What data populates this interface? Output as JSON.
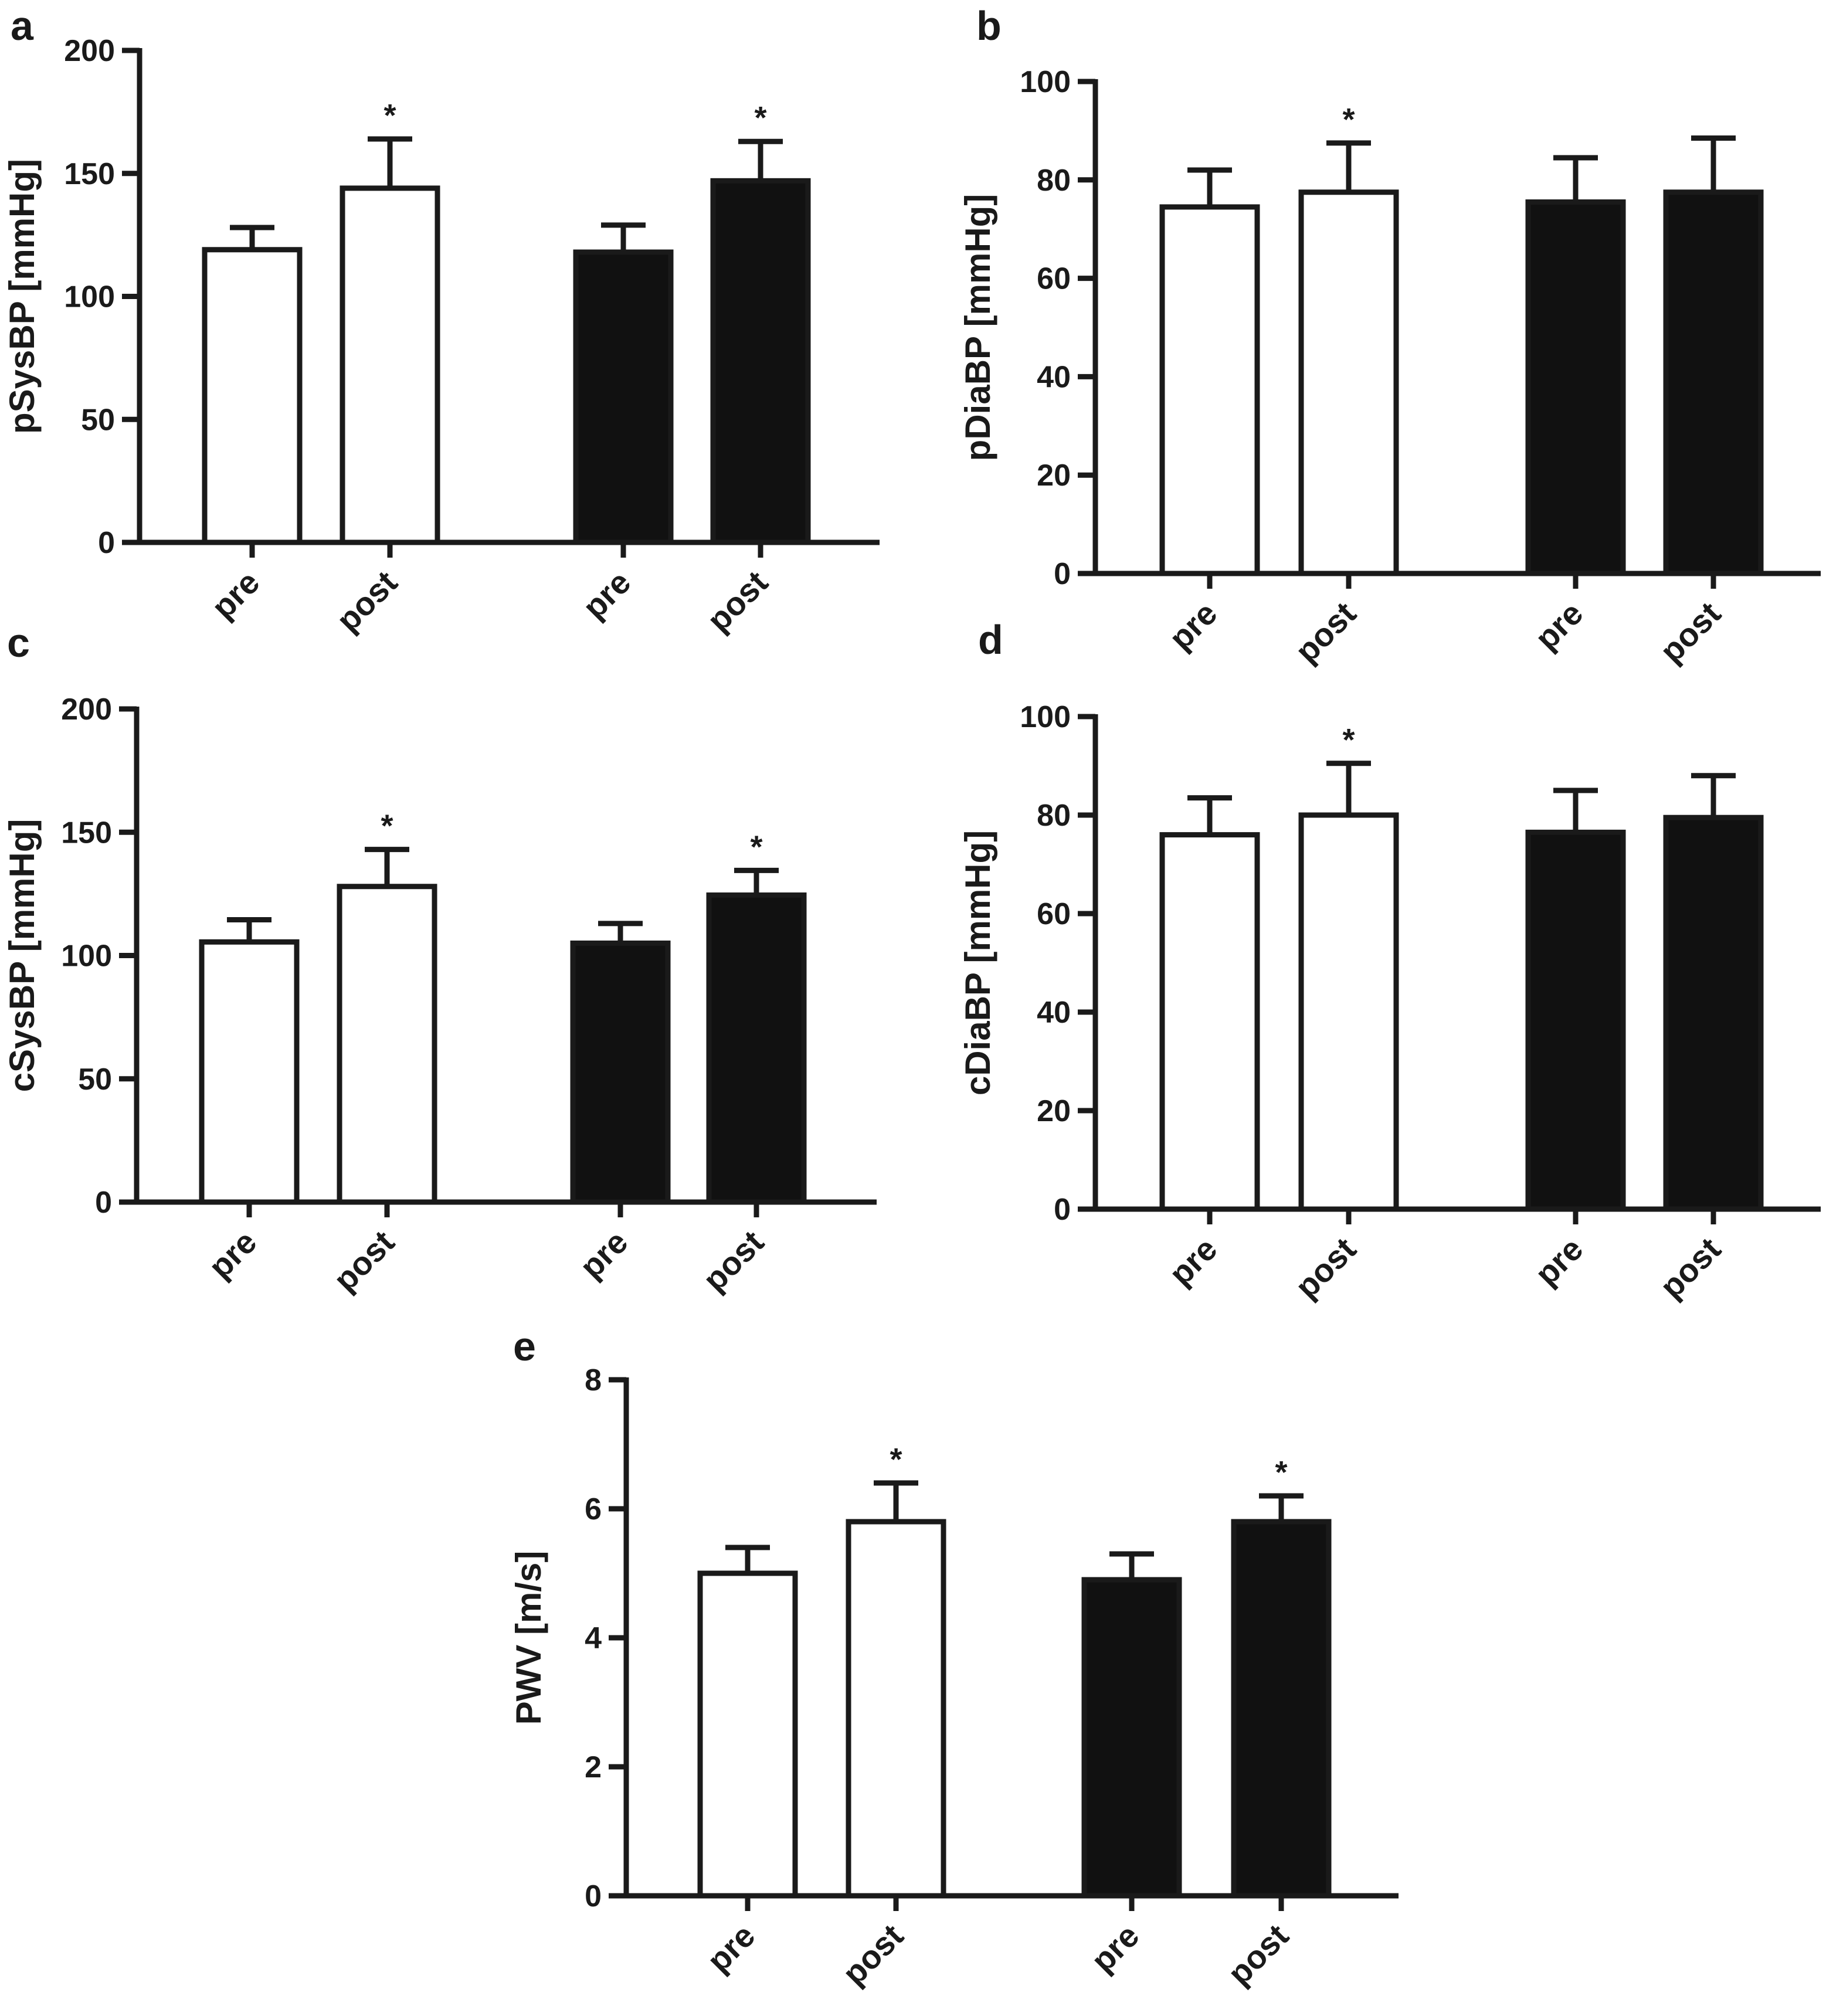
{
  "colors": {
    "axis": "#1a1a1a",
    "open_bar": "#ffffff",
    "filled_bar": "#111111"
  },
  "chart_data": [
    {
      "panel": "a",
      "type": "bar",
      "ylabel": "pSysBP [mmHg]",
      "ylim": [
        0,
        200
      ],
      "yticks": [
        "0",
        "50",
        "100",
        "150",
        "200"
      ],
      "categories": [
        "pre",
        "post",
        "pre",
        "post"
      ],
      "values": [
        119,
        144,
        118,
        147
      ],
      "errors": [
        9,
        20,
        11,
        16
      ],
      "fills": [
        "open",
        "open",
        "filled",
        "filled"
      ],
      "significance": [
        "",
        "*",
        "",
        "*"
      ]
    },
    {
      "panel": "b",
      "type": "bar",
      "ylabel": "pDiaBP [mmHg]",
      "ylim": [
        0,
        100
      ],
      "yticks": [
        "0",
        "20",
        "40",
        "60",
        "80",
        "100"
      ],
      "categories": [
        "pre",
        "post",
        "pre",
        "post"
      ],
      "values": [
        74.5,
        77.5,
        75.5,
        77.5
      ],
      "errors": [
        7.5,
        10,
        9,
        11
      ],
      "fills": [
        "open",
        "open",
        "filled",
        "filled"
      ],
      "significance": [
        "",
        "*",
        "",
        ""
      ]
    },
    {
      "panel": "c",
      "type": "bar",
      "ylabel": "cSysBP [mmHg]",
      "ylim": [
        0,
        200
      ],
      "yticks": [
        "0",
        "50",
        "100",
        "150",
        "200"
      ],
      "categories": [
        "pre",
        "post",
        "pre",
        "post"
      ],
      "values": [
        105.5,
        128,
        105,
        124.5
      ],
      "errors": [
        9,
        15,
        8,
        10
      ],
      "fills": [
        "open",
        "open",
        "filled",
        "filled"
      ],
      "significance": [
        "",
        "*",
        "",
        "*"
      ]
    },
    {
      "panel": "d",
      "type": "bar",
      "ylabel": "cDiaBP [mmHg]",
      "ylim": [
        0,
        100
      ],
      "yticks": [
        "0",
        "20",
        "40",
        "60",
        "80",
        "100"
      ],
      "categories": [
        "pre",
        "post",
        "pre",
        "post"
      ],
      "values": [
        76,
        80,
        76.5,
        79.5
      ],
      "errors": [
        7.5,
        10.5,
        8.5,
        8.5
      ],
      "fills": [
        "open",
        "open",
        "filled",
        "filled"
      ],
      "significance": [
        "",
        "*",
        "",
        ""
      ]
    },
    {
      "panel": "e",
      "type": "bar",
      "ylabel": "PWV [m/s]",
      "ylim": [
        0,
        8
      ],
      "yticks": [
        "0",
        "2",
        "4",
        "6",
        "8"
      ],
      "categories": [
        "pre",
        "post",
        "pre",
        "post"
      ],
      "values": [
        5.0,
        5.8,
        4.9,
        5.8
      ],
      "errors": [
        0.4,
        0.6,
        0.4,
        0.4
      ],
      "fills": [
        "open",
        "open",
        "filled",
        "filled"
      ],
      "significance": [
        "",
        "*",
        "",
        "*"
      ]
    }
  ]
}
